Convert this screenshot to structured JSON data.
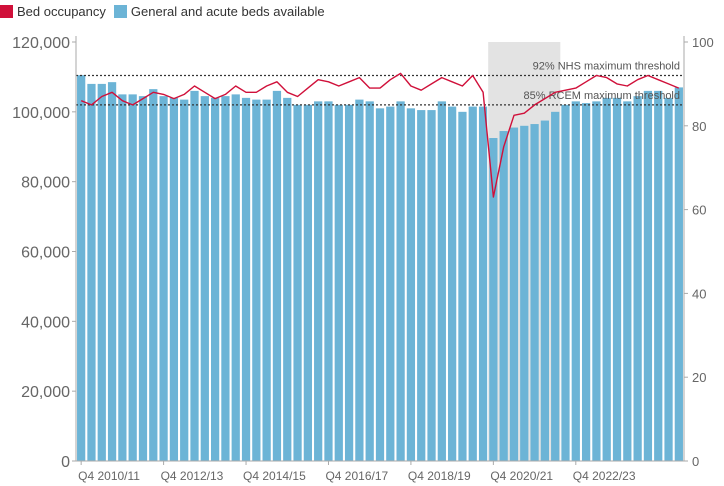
{
  "chart_data": {
    "type": "bar",
    "legend": [
      {
        "label": "Bed occupancy",
        "color": "#d0103a",
        "kind": "line",
        "axis": "right"
      },
      {
        "label": "General and acute beds available",
        "color": "#6cb4d6",
        "kind": "bar",
        "axis": "left"
      }
    ],
    "x_tick_labels": [
      "Q4 2010/11",
      "Q4 2012/13",
      "Q4 2014/15",
      "Q4 2016/17",
      "Q4 2018/19",
      "Q4 2020/21",
      "Q4 2022/23"
    ],
    "x_tick_index": [
      0,
      8,
      16,
      24,
      32,
      40,
      48
    ],
    "y_left_ticks": [
      "0",
      "20,000",
      "40,000",
      "60,000",
      "80,000",
      "100,000",
      "120,000"
    ],
    "y_left_range": [
      0,
      120000
    ],
    "y_right_ticks": [
      "0",
      "20",
      "40",
      "60",
      "80",
      "100"
    ],
    "y_right_range": [
      0,
      100
    ],
    "bars": {
      "name": "General and acute beds available",
      "values": [
        110500,
        108000,
        108000,
        108500,
        105000,
        105000,
        104500,
        106500,
        104500,
        104000,
        103500,
        106000,
        104500,
        104000,
        104500,
        105000,
        104000,
        103500,
        103500,
        106000,
        104000,
        102000,
        102000,
        103000,
        103000,
        102000,
        102000,
        103500,
        103000,
        101000,
        101500,
        103000,
        101000,
        100500,
        100500,
        103000,
        101500,
        100000,
        101500,
        101500,
        92500,
        94500,
        95500,
        96000,
        96500,
        97500,
        100000,
        102000,
        103000,
        102500,
        103000,
        104000,
        104000,
        103000,
        104500,
        106000,
        106000,
        104000,
        107000
      ]
    },
    "line": {
      "name": "Bed occupancy",
      "values": [
        86,
        85,
        87,
        88,
        86,
        85,
        86.5,
        88,
        87.5,
        86.5,
        87.5,
        89.5,
        88,
        86.5,
        87.5,
        89.5,
        88,
        88,
        89.5,
        90.5,
        88,
        87,
        89,
        91,
        90.5,
        89.5,
        90.5,
        91.5,
        89,
        89,
        91,
        92.5,
        89.5,
        88.5,
        90,
        91.5,
        90.5,
        89.5,
        92,
        88,
        63,
        75,
        82.5,
        83,
        85,
        86.5,
        88,
        88.5,
        89,
        90.5,
        92,
        91.5,
        90,
        89.5,
        91,
        92,
        91,
        90,
        89
      ]
    },
    "shaded_region_index": [
      40,
      46
    ],
    "threshold_lines": [
      {
        "label": "92% NHS maximum threshold",
        "value": 92
      },
      {
        "label": "85% RCEM maximum threshold",
        "value": 85
      }
    ]
  }
}
